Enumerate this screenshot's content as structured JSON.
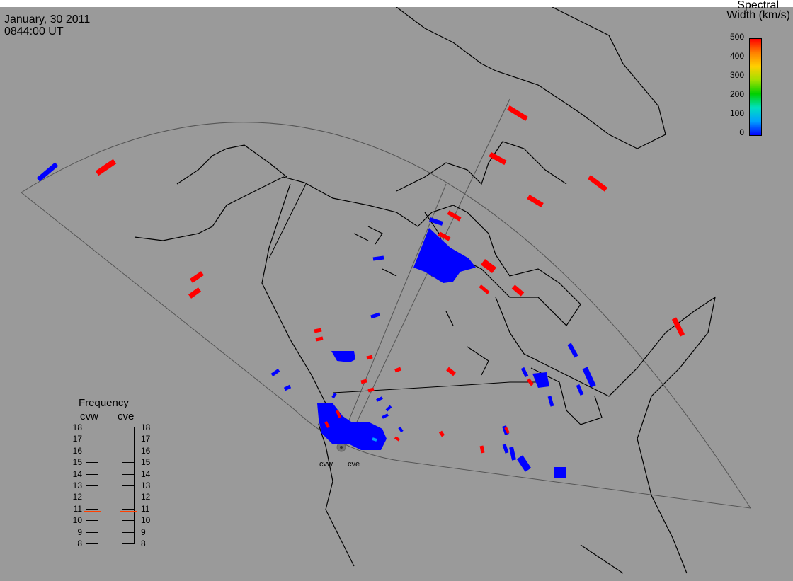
{
  "header": {
    "date": "January, 30 2011",
    "time": "0844:00 UT"
  },
  "colorbar": {
    "title_line1": "Spectral",
    "title_line2": "Width (km/s)",
    "ticks": [
      "500",
      "400",
      "300",
      "200",
      "100",
      "0"
    ],
    "colors": [
      "#0000ff",
      "#00a0ff",
      "#00e0c0",
      "#00d000",
      "#a0e000",
      "#ffd000",
      "#ff8000",
      "#ff0000"
    ]
  },
  "frequency_panel": {
    "title": "Frequency",
    "radars": [
      {
        "label": "cvw",
        "value_mhz": 10.8
      },
      {
        "label": "cve",
        "value_mhz": 10.8
      }
    ],
    "ticks": [
      "18",
      "17",
      "16",
      "15",
      "14",
      "13",
      "12",
      "11",
      "10",
      "9",
      "8"
    ]
  },
  "radars": [
    {
      "label": "cvw"
    },
    {
      "label": "cve"
    }
  ],
  "scatter_colors": {
    "low": "#0000ff",
    "high": "#ff0000"
  }
}
